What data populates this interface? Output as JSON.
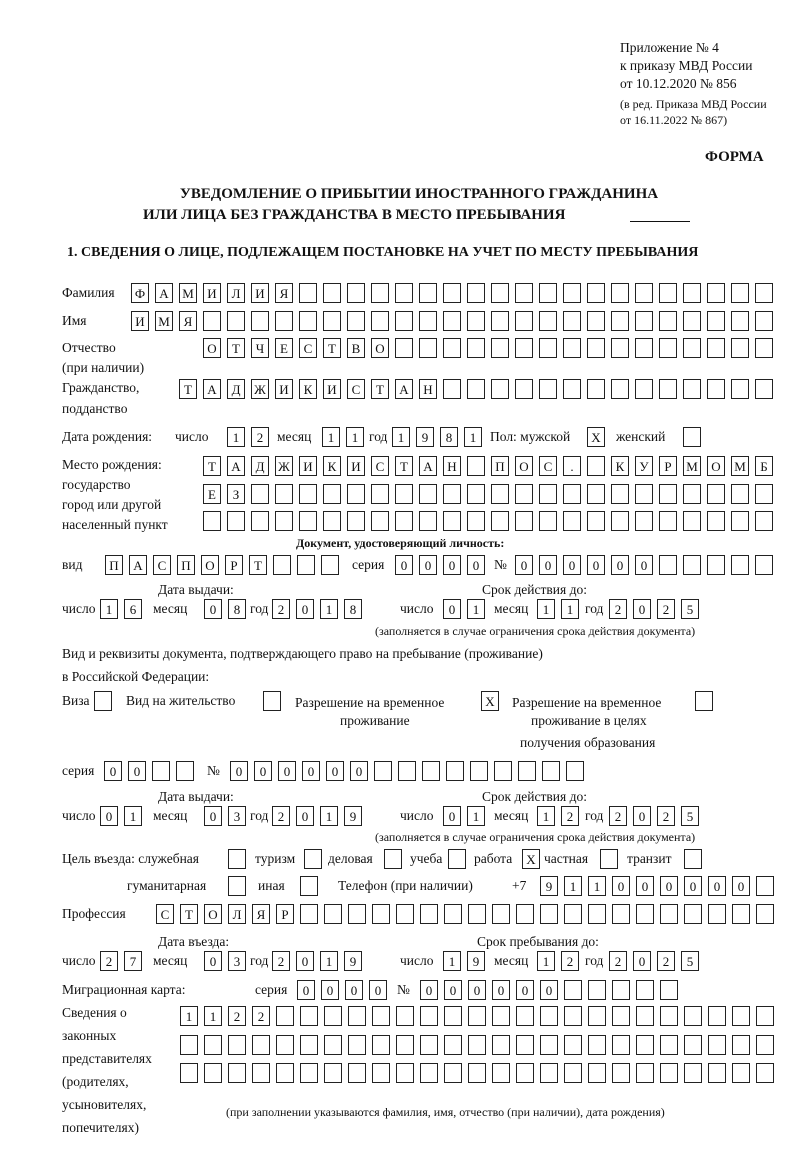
{
  "header": {
    "appendix": [
      "Приложение № 4",
      "к приказу МВД России",
      "от 10.12.2020 № 856",
      "(в ред. Приказа МВД России",
      "от 16.11.2022 № 867)"
    ],
    "forma": "ФОРМА",
    "title_line1": "УВЕДОМЛЕНИЕ О ПРИБЫТИИ ИНОСТРАННОГО ГРАЖДАНИНА",
    "title_line2": "ИЛИ ЛИЦА БЕЗ ГРАЖДАНСТВА В МЕСТО ПРЕБЫВАНИЯ",
    "section1": "1. СВЕДЕНИЯ О ЛИЦЕ, ПОДЛЕЖАЩЕМ ПОСТАНОВКЕ НА УЧЕТ ПО МЕСТУ ПРЕБЫВАНИЯ"
  },
  "labels": {
    "day": "число",
    "month": "месяц",
    "year": "год",
    "series": "серия",
    "number": "№",
    "issue_date": "Дата выдачи:",
    "validity": "Срок действия до:",
    "validity_note": "(заполняется в случае ограничения срока действия документа)"
  },
  "person": {
    "surname_label": "Фамилия",
    "surname": "ФАМИЛИЯ",
    "name_label": "Имя",
    "name": "ИМЯ",
    "patronymic_label": "Отчество",
    "patronymic_note": "(при наличии)",
    "patronymic": "ОТЧЕСТВО",
    "citizenship_label1": "Гражданство,",
    "citizenship_label2": "подданство",
    "citizenship": "ТАДЖИКИСТАН"
  },
  "birth": {
    "label": "Дата рождения:",
    "day": "12",
    "month": "11",
    "year": "1981",
    "sex_label": "Пол: мужской",
    "male": "X",
    "female_label": "женский",
    "female": ""
  },
  "birthplace": {
    "labels": [
      "Место рождения:",
      "государство",
      "город или другой",
      "населенный пункт"
    ],
    "line1": "ТАДЖИКИСТАН ПОС. КУРМОМБ",
    "line2": "ЕЗ",
    "line3": ""
  },
  "id_doc": {
    "heading": "Документ, удостоверяющий личность:",
    "kind_label": "вид",
    "kind": "ПАСПОРТ",
    "series": "0000",
    "number": "000000",
    "issue": {
      "day": "16",
      "month": "08",
      "year": "2018"
    },
    "validity": {
      "day": "01",
      "month": "11",
      "year": "2025"
    }
  },
  "residence_doc": {
    "heading_line1": "Вид и реквизиты документа, подтверждающего право на пребывание (проживание)",
    "heading_line2": "в Российской Федерации:",
    "visa_label": "Виза",
    "visa": "",
    "residence_permit_label": "Вид на жительство",
    "residence_permit": "",
    "temp_residence_label1": "Разрешение на временное",
    "temp_residence_label2": "проживание",
    "temp_residence": "X",
    "edu_residence_label1": "Разрешение на временное",
    "edu_residence_label2": "проживание в целях",
    "edu_residence_label3": "получения образования",
    "edu_residence": "",
    "series": "00",
    "number": "000000",
    "issue": {
      "day": "01",
      "month": "03",
      "year": "2019"
    },
    "validity": {
      "day": "01",
      "month": "12",
      "year": "2025"
    }
  },
  "purpose": {
    "label": "Цель въезда: служебная",
    "official": "",
    "tourism_label": "туризм",
    "tourism": "",
    "business_label": "деловая",
    "business": "",
    "study_label": "учеба",
    "study": "",
    "work_label": "работа",
    "work": "X",
    "private_label": "частная",
    "private": "",
    "transit_label": "транзит",
    "transit": "",
    "humanitarian_label": "гуманитарная",
    "humanitarian": "",
    "other_label": "иная",
    "other": ""
  },
  "phone": {
    "label": "Телефон (при наличии)",
    "prefix": "+7",
    "value": "911000000"
  },
  "profession": {
    "label": "Профессия",
    "value": "СТОЛЯР"
  },
  "entry": {
    "entry_label": "Дата въезда:",
    "entry": {
      "day": "27",
      "month": "03",
      "year": "2019"
    },
    "stay_label": "Срок пребывания до:",
    "stay": {
      "day": "19",
      "month": "12",
      "year": "2025"
    }
  },
  "migration_card": {
    "label": "Миграционная карта:",
    "series": "0000",
    "number": "000000"
  },
  "representatives": {
    "labels": [
      "Сведения о",
      "законных",
      "представителях",
      "(родителях,",
      "усыновителях,",
      "попечителях)"
    ],
    "line1": "1122",
    "line2": "",
    "line3": "",
    "note": "(при заполнении указываются фамилия, имя, отчество (при наличии), дата рождения)"
  }
}
